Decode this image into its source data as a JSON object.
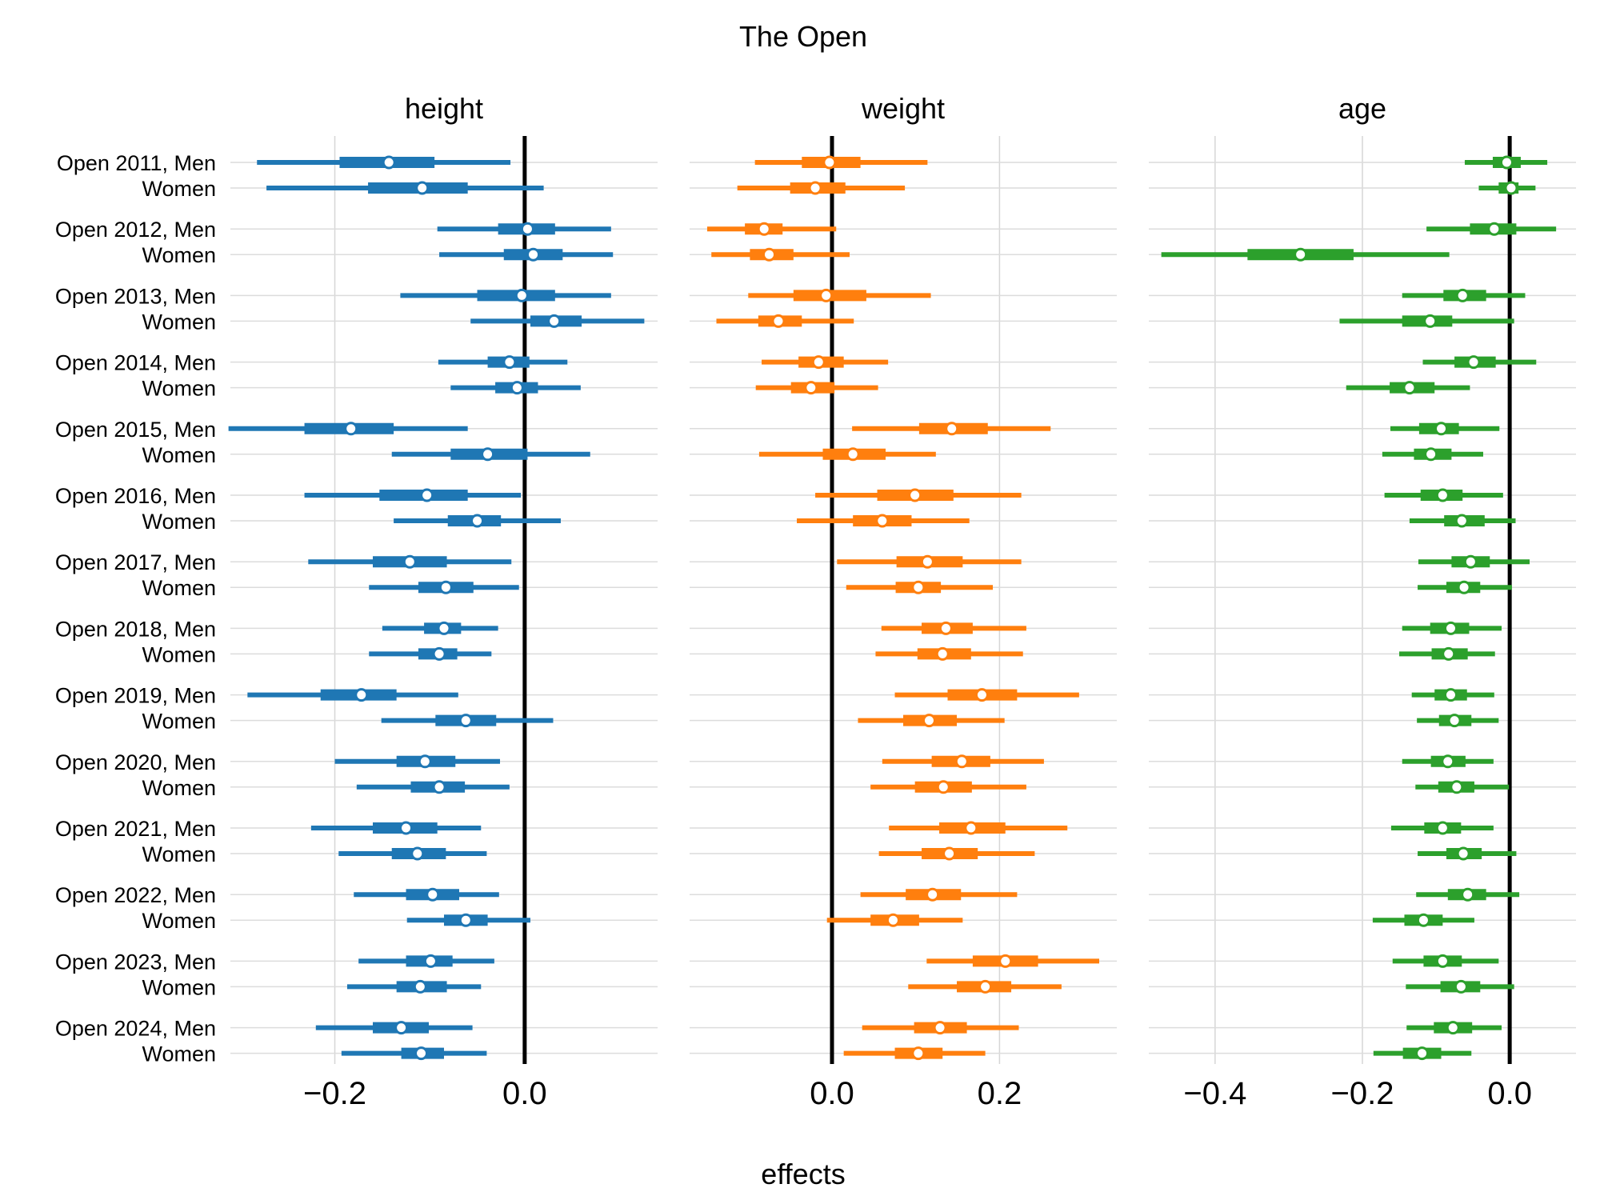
{
  "chart_data": {
    "type": "forest",
    "title": "The Open",
    "xlabel": "effects",
    "rows": [
      "Open 2011, Men",
      "Women",
      "Open 2012, Men",
      "Women",
      "Open 2013, Men",
      "Women",
      "Open 2014, Men",
      "Women",
      "Open 2015, Men",
      "Women",
      "Open 2016, Men",
      "Women",
      "Open 2017, Men",
      "Women",
      "Open 2018, Men",
      "Women",
      "Open 2019, Men",
      "Women",
      "Open 2020, Men",
      "Women",
      "Open 2021, Men",
      "Women",
      "Open 2022, Men",
      "Women",
      "Open 2023, Men",
      "Women",
      "Open 2024, Men",
      "Women"
    ],
    "panels": [
      {
        "name": "height",
        "color": "#1f77b4",
        "xlim": [
          -0.31,
          0.14
        ],
        "ticks": [
          -0.2,
          0.0
        ],
        "tick_labels": [
          "−0.2",
          "0.0"
        ],
        "mean": [
          -0.143,
          -0.108,
          0.003,
          0.009,
          -0.003,
          0.031,
          -0.016,
          -0.008,
          -0.183,
          -0.039,
          -0.103,
          -0.05,
          -0.121,
          -0.083,
          -0.085,
          -0.09,
          -0.172,
          -0.062,
          -0.105,
          -0.09,
          -0.125,
          -0.113,
          -0.097,
          -0.062,
          -0.099,
          -0.11,
          -0.13,
          -0.109
        ],
        "hdi50": [
          [
            -0.195,
            -0.095
          ],
          [
            -0.165,
            -0.06
          ],
          [
            -0.028,
            0.032
          ],
          [
            -0.022,
            0.04
          ],
          [
            -0.05,
            0.032
          ],
          [
            0.006,
            0.06
          ],
          [
            -0.039,
            0.005
          ],
          [
            -0.031,
            0.014
          ],
          [
            -0.232,
            -0.138
          ],
          [
            -0.078,
            0.003
          ],
          [
            -0.153,
            -0.06
          ],
          [
            -0.081,
            -0.025
          ],
          [
            -0.16,
            -0.082
          ],
          [
            -0.112,
            -0.054
          ],
          [
            -0.106,
            -0.067
          ],
          [
            -0.112,
            -0.071
          ],
          [
            -0.215,
            -0.135
          ],
          [
            -0.094,
            -0.03
          ],
          [
            -0.135,
            -0.073
          ],
          [
            -0.12,
            -0.063
          ],
          [
            -0.16,
            -0.092
          ],
          [
            -0.14,
            -0.083
          ],
          [
            -0.125,
            -0.069
          ],
          [
            -0.085,
            -0.039
          ],
          [
            -0.125,
            -0.076
          ],
          [
            -0.135,
            -0.082
          ],
          [
            -0.16,
            -0.101
          ],
          [
            -0.13,
            -0.085
          ]
        ],
        "hdi94": [
          [
            -0.282,
            -0.015
          ],
          [
            -0.272,
            0.02
          ],
          [
            -0.092,
            0.091
          ],
          [
            -0.09,
            0.093
          ],
          [
            -0.131,
            0.091
          ],
          [
            -0.057,
            0.126
          ],
          [
            -0.091,
            0.045
          ],
          [
            -0.078,
            0.059
          ],
          [
            -0.312,
            -0.06
          ],
          [
            -0.14,
            0.069
          ],
          [
            -0.232,
            -0.004
          ],
          [
            -0.138,
            0.038
          ],
          [
            -0.228,
            -0.014
          ],
          [
            -0.164,
            -0.006
          ],
          [
            -0.15,
            -0.028
          ],
          [
            -0.164,
            -0.035
          ],
          [
            -0.292,
            -0.07
          ],
          [
            -0.151,
            0.03
          ],
          [
            -0.2,
            -0.026
          ],
          [
            -0.177,
            -0.016
          ],
          [
            -0.225,
            -0.046
          ],
          [
            -0.196,
            -0.04
          ],
          [
            -0.18,
            -0.027
          ],
          [
            -0.124,
            0.006
          ],
          [
            -0.175,
            -0.032
          ],
          [
            -0.187,
            -0.046
          ],
          [
            -0.22,
            -0.055
          ],
          [
            -0.193,
            -0.04
          ]
        ]
      },
      {
        "name": "weight",
        "color": "#ff7f0e",
        "xlim": [
          -0.17,
          0.34
        ],
        "ticks": [
          0.0,
          0.2
        ],
        "tick_labels": [
          "0.0",
          "0.2"
        ],
        "mean": [
          -0.003,
          -0.02,
          -0.081,
          -0.075,
          -0.007,
          -0.064,
          -0.016,
          -0.025,
          0.143,
          0.025,
          0.099,
          0.06,
          0.114,
          0.103,
          0.136,
          0.132,
          0.179,
          0.116,
          0.155,
          0.133,
          0.166,
          0.14,
          0.12,
          0.073,
          0.207,
          0.183,
          0.129,
          0.103
        ],
        "hdi50": [
          [
            -0.036,
            0.034
          ],
          [
            -0.05,
            0.016
          ],
          [
            -0.104,
            -0.059
          ],
          [
            -0.098,
            -0.046
          ],
          [
            -0.046,
            0.041
          ],
          [
            -0.088,
            -0.036
          ],
          [
            -0.04,
            0.014
          ],
          [
            -0.049,
            0.003
          ],
          [
            0.104,
            0.186
          ],
          [
            -0.011,
            0.064
          ],
          [
            0.054,
            0.145
          ],
          [
            0.025,
            0.095
          ],
          [
            0.077,
            0.156
          ],
          [
            0.076,
            0.13
          ],
          [
            0.107,
            0.168
          ],
          [
            0.102,
            0.166
          ],
          [
            0.138,
            0.221
          ],
          [
            0.085,
            0.149
          ],
          [
            0.119,
            0.189
          ],
          [
            0.099,
            0.167
          ],
          [
            0.128,
            0.207
          ],
          [
            0.107,
            0.174
          ],
          [
            0.088,
            0.154
          ],
          [
            0.046,
            0.104
          ],
          [
            0.168,
            0.246
          ],
          [
            0.149,
            0.214
          ],
          [
            0.098,
            0.161
          ],
          [
            0.075,
            0.132
          ]
        ],
        "hdi94": [
          [
            -0.092,
            0.114
          ],
          [
            -0.113,
            0.087
          ],
          [
            -0.149,
            0.005
          ],
          [
            -0.144,
            0.021
          ],
          [
            -0.1,
            0.118
          ],
          [
            -0.138,
            0.026
          ],
          [
            -0.084,
            0.067
          ],
          [
            -0.091,
            0.055
          ],
          [
            0.024,
            0.261
          ],
          [
            -0.087,
            0.124
          ],
          [
            -0.02,
            0.226
          ],
          [
            -0.042,
            0.164
          ],
          [
            0.006,
            0.226
          ],
          [
            0.017,
            0.192
          ],
          [
            0.059,
            0.232
          ],
          [
            0.052,
            0.228
          ],
          [
            0.075,
            0.295
          ],
          [
            0.031,
            0.206
          ],
          [
            0.06,
            0.253
          ],
          [
            0.046,
            0.232
          ],
          [
            0.068,
            0.281
          ],
          [
            0.056,
            0.242
          ],
          [
            0.034,
            0.221
          ],
          [
            -0.006,
            0.156
          ],
          [
            0.113,
            0.319
          ],
          [
            0.091,
            0.274
          ],
          [
            0.036,
            0.223
          ],
          [
            0.014,
            0.183
          ]
        ]
      },
      {
        "name": "age",
        "color": "#2ca02c",
        "xlim": [
          -0.49,
          0.09
        ],
        "ticks": [
          -0.4,
          -0.2,
          0.0
        ],
        "tick_labels": [
          "−0.4",
          "−0.2",
          "0.0"
        ],
        "mean": [
          -0.004,
          0.002,
          -0.021,
          -0.284,
          -0.064,
          -0.108,
          -0.049,
          -0.136,
          -0.093,
          -0.107,
          -0.091,
          -0.065,
          -0.053,
          -0.062,
          -0.08,
          -0.083,
          -0.08,
          -0.075,
          -0.084,
          -0.072,
          -0.091,
          -0.063,
          -0.057,
          -0.117,
          -0.091,
          -0.066,
          -0.077,
          -0.119
        ],
        "hdi50": [
          [
            -0.023,
            0.015
          ],
          [
            -0.015,
            0.012
          ],
          [
            -0.054,
            0.009
          ],
          [
            -0.356,
            -0.212
          ],
          [
            -0.09,
            -0.032
          ],
          [
            -0.146,
            -0.078
          ],
          [
            -0.075,
            -0.019
          ],
          [
            -0.163,
            -0.102
          ],
          [
            -0.123,
            -0.069
          ],
          [
            -0.13,
            -0.079
          ],
          [
            -0.121,
            -0.064
          ],
          [
            -0.089,
            -0.034
          ],
          [
            -0.079,
            -0.027
          ],
          [
            -0.086,
            -0.04
          ],
          [
            -0.108,
            -0.055
          ],
          [
            -0.106,
            -0.057
          ],
          [
            -0.102,
            -0.058
          ],
          [
            -0.096,
            -0.052
          ],
          [
            -0.107,
            -0.06
          ],
          [
            -0.097,
            -0.048
          ],
          [
            -0.116,
            -0.066
          ],
          [
            -0.086,
            -0.038
          ],
          [
            -0.084,
            -0.032
          ],
          [
            -0.143,
            -0.091
          ],
          [
            -0.117,
            -0.065
          ],
          [
            -0.094,
            -0.04
          ],
          [
            -0.103,
            -0.051
          ],
          [
            -0.145,
            -0.093
          ]
        ],
        "hdi94": [
          [
            -0.061,
            0.051
          ],
          [
            -0.042,
            0.035
          ],
          [
            -0.113,
            0.063
          ],
          [
            -0.473,
            -0.082
          ],
          [
            -0.146,
            0.021
          ],
          [
            -0.231,
            0.006
          ],
          [
            -0.118,
            0.036
          ],
          [
            -0.222,
            -0.054
          ],
          [
            -0.162,
            -0.014
          ],
          [
            -0.173,
            -0.036
          ],
          [
            -0.17,
            -0.009
          ],
          [
            -0.136,
            0.008
          ],
          [
            -0.124,
            0.027
          ],
          [
            -0.125,
            0.003
          ],
          [
            -0.146,
            -0.011
          ],
          [
            -0.15,
            -0.02
          ],
          [
            -0.133,
            -0.021
          ],
          [
            -0.126,
            -0.015
          ],
          [
            -0.146,
            -0.022
          ],
          [
            -0.128,
            -0.001
          ],
          [
            -0.161,
            -0.022
          ],
          [
            -0.125,
            0.009
          ],
          [
            -0.127,
            0.013
          ],
          [
            -0.186,
            -0.048
          ],
          [
            -0.159,
            -0.015
          ],
          [
            -0.141,
            0.006
          ],
          [
            -0.14,
            -0.011
          ],
          [
            -0.185,
            -0.052
          ]
        ]
      }
    ]
  }
}
